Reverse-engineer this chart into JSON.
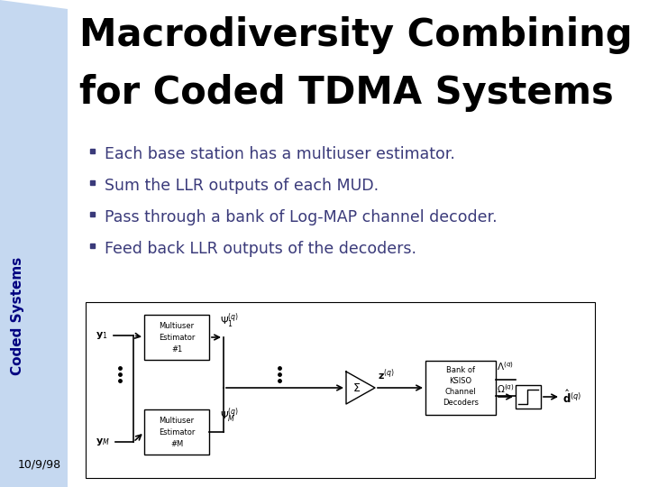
{
  "title_line1": "Macrodiversity Combining",
  "title_line2": "for Coded TDMA Systems",
  "bullets": [
    "Each base station has a multiuser estimator.",
    "Sum the LLR outputs of each MUD.",
    "Pass through a bank of Log-MAP channel decoder.",
    "Feed back LLR outputs of the decoders."
  ],
  "sidebar_text": "Coded Systems",
  "date_text": "10/9/98",
  "bg_color": "#ffffff",
  "sidebar_color": "#c5d8f0",
  "title_color": "#000000",
  "bullet_color": "#3a3a7a",
  "diagram_bg": "#ffffff",
  "diagram_border": "#000000",
  "sidebar_text_color": "#000080"
}
